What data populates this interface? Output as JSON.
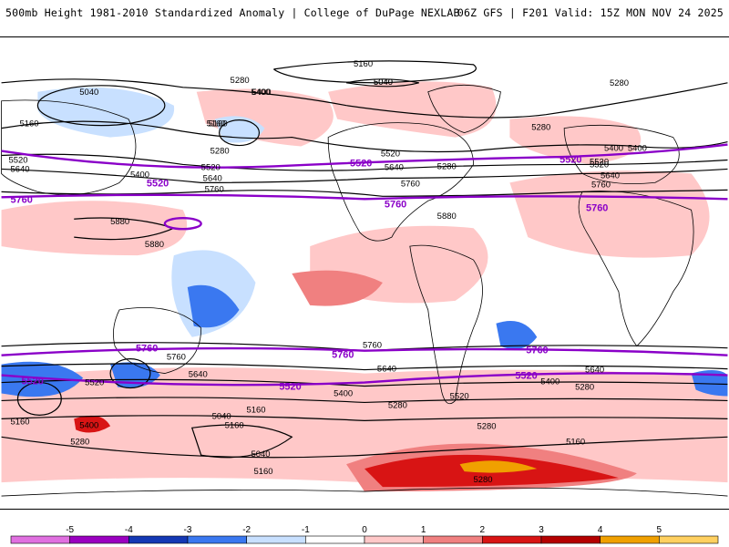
{
  "header": {
    "title_left": "500mb Height 1981-2010 Standardized Anomaly | College of DuPage NEXLAB",
    "title_right": "06Z GFS | F201 Valid: 15Z MON NOV 24 2025"
  },
  "contour_labels_black": [
    "5160",
    "5040",
    "5280",
    "5040",
    "5400",
    "5160",
    "5160",
    "5280",
    "5520",
    "5400",
    "5640",
    "5520",
    "5640",
    "5760",
    "5880",
    "5880",
    "5160",
    "5280",
    "5400",
    "5640",
    "5760",
    "5400",
    "5520",
    "5280",
    "5160",
    "5040",
    "5040",
    "5160",
    "5280",
    "5160",
    "5400",
    "5520",
    "5640",
    "5760",
    "5880",
    "5280",
    "5520",
    "5400",
    "5640",
    "5760",
    "5280",
    "5160",
    "5640",
    "5520",
    "5400",
    "5280",
    "5400",
    "5280",
    "5160",
    "5040",
    "5280",
    "5520",
    "5640",
    "5760"
  ],
  "contour_labels_purple": [
    "5520",
    "5760",
    "5520",
    "5760",
    "5520",
    "5760",
    "5760",
    "5760",
    "5760",
    "5520",
    "5520",
    "5520"
  ],
  "colorbar": {
    "ticks": [
      "-5",
      "-4",
      "-3",
      "-2",
      "-1",
      "0",
      "1",
      "2",
      "3",
      "4",
      "5"
    ],
    "colors": [
      "#e070e0",
      "#9a00c0",
      "#1438b4",
      "#3a78f0",
      "#c8e0ff",
      "#ffffff",
      "#ffc8c8",
      "#f08080",
      "#d81414",
      "#b40000",
      "#f0a000",
      "#ffd060"
    ]
  }
}
